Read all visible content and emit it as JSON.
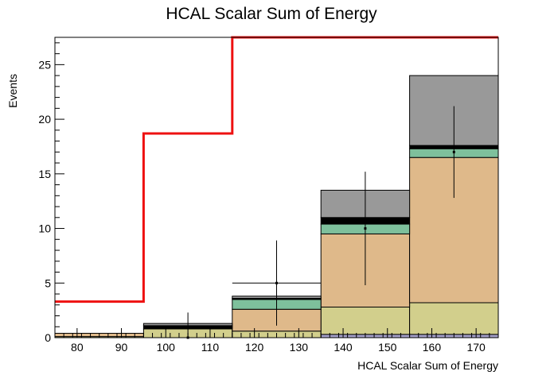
{
  "chart_data": {
    "type": "bar",
    "title": "HCAL Scalar Sum of Energy",
    "xlabel": "HCAL Scalar Sum of Energy",
    "ylabel": "Events",
    "xlim": [
      75,
      175
    ],
    "ylim": [
      0,
      27.5
    ],
    "x_ticks": [
      80,
      90,
      100,
      110,
      120,
      130,
      140,
      150,
      160,
      170
    ],
    "y_ticks": [
      0,
      5,
      10,
      15,
      20,
      25
    ],
    "bin_edges": [
      75,
      95,
      115,
      135,
      155,
      175
    ],
    "stack": [
      {
        "color": "#a4a0c8",
        "values": [
          0.0,
          0.0,
          0.0,
          0.3,
          0.3
        ]
      },
      {
        "color": "#d2cf8c",
        "values": [
          0.1,
          0.8,
          0.6,
          2.5,
          2.9
        ]
      },
      {
        "color": "#dfb98a",
        "values": [
          0.3,
          0.0,
          2.0,
          6.7,
          13.3
        ]
      },
      {
        "color": "#7ec09c",
        "values": [
          0.0,
          0.0,
          0.9,
          0.9,
          0.8
        ]
      },
      {
        "color": "#000000",
        "values": [
          0.0,
          0.3,
          0.1,
          0.6,
          0.3
        ]
      },
      {
        "color": "#999999",
        "values": [
          0.0,
          0.2,
          0.2,
          2.5,
          6.4
        ]
      }
    ],
    "signal": {
      "color": "#ee1111",
      "values": [
        3.3,
        18.7,
        32.0,
        32.0,
        32.0
      ]
    },
    "data_points": [
      {
        "x": 105,
        "y": 0.0,
        "yerr_low": 0.0,
        "yerr_high": 2.3,
        "xerr": 0
      },
      {
        "x": 125,
        "y": 5.0,
        "yerr_low": 3.9,
        "yerr_high": 3.9,
        "xerr": 10
      },
      {
        "x": 145,
        "y": 10.0,
        "yerr_low": 5.2,
        "yerr_high": 5.2,
        "xerr": 0
      },
      {
        "x": 165,
        "y": 17.0,
        "yerr_low": 4.2,
        "yerr_high": 4.2,
        "xerr": 0
      }
    ]
  }
}
